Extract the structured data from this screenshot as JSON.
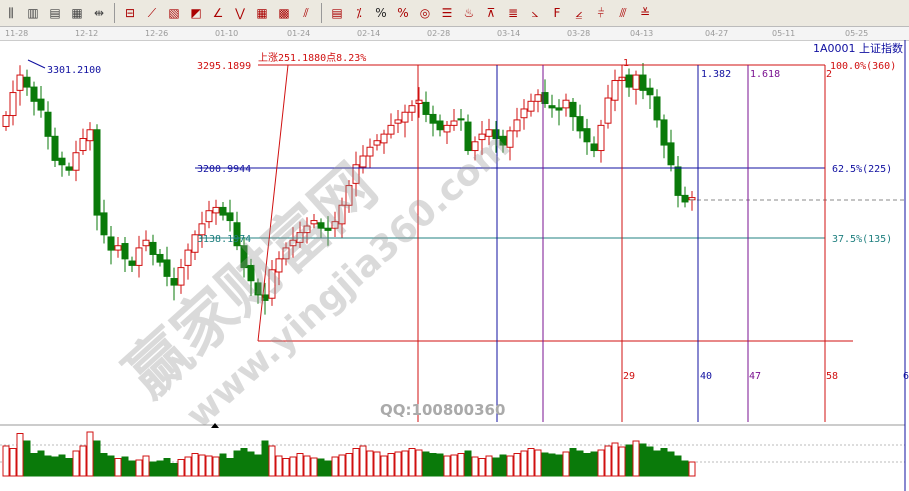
{
  "toolbar": {
    "icons": [
      "bars-icon",
      "candle-icon",
      "candle-hollow-icon",
      "ohlc-icon",
      "range-icon",
      "rect-select-icon",
      "fan-icon",
      "gann-box-icon",
      "gann-fan-icon",
      "angle-icon",
      "zigzag-icon",
      "grid-icon",
      "grid2-icon",
      "parallel-lines-icon",
      "period-icon",
      "percent-line-icon",
      "percent-icon",
      "percent2-icon",
      "gold-circle-icon",
      "gold-line-icon",
      "fire-icon",
      "fib-fan-icon",
      "gold-split-icon",
      "fib-arc-icon",
      "fib-lines-icon",
      "fib-lines2-icon",
      "time-zone-icon",
      "speed-line-icon",
      "fib-time-icon"
    ],
    "percent_label": "%"
  },
  "date_axis": [
    "11-28",
    "12-12",
    "12-26",
    "01-10",
    "01-24",
    "02-14",
    "02-28",
    "03-14",
    "03-28",
    "04-13",
    "04-27",
    "05-11",
    "05-25"
  ],
  "symbol": "1A0001  上证指数",
  "annotations": {
    "high_price": "3301.2100",
    "top_level": "3295.1899",
    "rise_text": "上涨251.1880点8.23%",
    "level_625_price": "3200.9944",
    "level_375_price": "3138.1974",
    "pct_100": "100.0%(360)",
    "pct_625": "62.5%(225)",
    "pct_375": "37.5%(135)",
    "ratio_1382": "1.382",
    "ratio_1618": "1.618",
    "mark_1": "1",
    "mark_2": "2",
    "count_29": "29",
    "count_40": "40",
    "count_47": "47",
    "count_58": "58",
    "count_6": "6"
  },
  "watermark": {
    "qq": "QQ:100800360",
    "site_cn": "赢家财富网",
    "site_url": "www.yingjia360.com"
  },
  "colors": {
    "up": "#d01010",
    "down": "#0a7a0a",
    "fib_red": "#d01010",
    "fib_blue": "#1010a0",
    "fib_purple": "#7a1090",
    "teal": "#208080"
  },
  "chart_data": {
    "type": "candlestick",
    "price_range": [
      3040,
      3310
    ],
    "closes": [
      3249,
      3270,
      3286,
      3275,
      3262,
      3254,
      3230,
      3208,
      3204,
      3199,
      3215,
      3228,
      3236,
      3158,
      3140,
      3126,
      3130,
      3118,
      3112,
      3128,
      3135,
      3122,
      3115,
      3102,
      3094,
      3110,
      3126,
      3140,
      3150,
      3162,
      3165,
      3158,
      3153,
      3130,
      3110,
      3098,
      3085,
      3080,
      3108,
      3118,
      3128,
      3135,
      3142,
      3148,
      3153,
      3146,
      3144,
      3152,
      3167,
      3185,
      3204,
      3212,
      3220,
      3226,
      3232,
      3240,
      3245,
      3252,
      3258,
      3263,
      3250,
      3242,
      3236,
      3240,
      3244,
      3245,
      3217,
      3225,
      3232,
      3236,
      3228,
      3222,
      3235,
      3245,
      3255,
      3262,
      3268,
      3260,
      3256,
      3254,
      3263,
      3248,
      3235,
      3225,
      3217,
      3240,
      3265,
      3281,
      3284,
      3275,
      3286,
      3272,
      3268,
      3245,
      3222,
      3204,
      3176,
      3170,
      3174
    ],
    "volumes": [
      60,
      55,
      85,
      70,
      45,
      50,
      40,
      38,
      42,
      35,
      50,
      60,
      88,
      70,
      45,
      40,
      35,
      38,
      30,
      32,
      40,
      28,
      30,
      35,
      25,
      33,
      38,
      45,
      42,
      40,
      38,
      44,
      35,
      50,
      55,
      48,
      42,
      70,
      60,
      40,
      35,
      38,
      45,
      40,
      36,
      34,
      30,
      38,
      42,
      45,
      55,
      60,
      50,
      48,
      40,
      45,
      48,
      50,
      55,
      52,
      48,
      45,
      44,
      40,
      42,
      45,
      50,
      38,
      35,
      40,
      36,
      42,
      40,
      45,
      50,
      55,
      52,
      46,
      44,
      42,
      48,
      55,
      50,
      45,
      48,
      52,
      60,
      66,
      58,
      62,
      70,
      64,
      58,
      50,
      55,
      48,
      40,
      30,
      28
    ]
  }
}
